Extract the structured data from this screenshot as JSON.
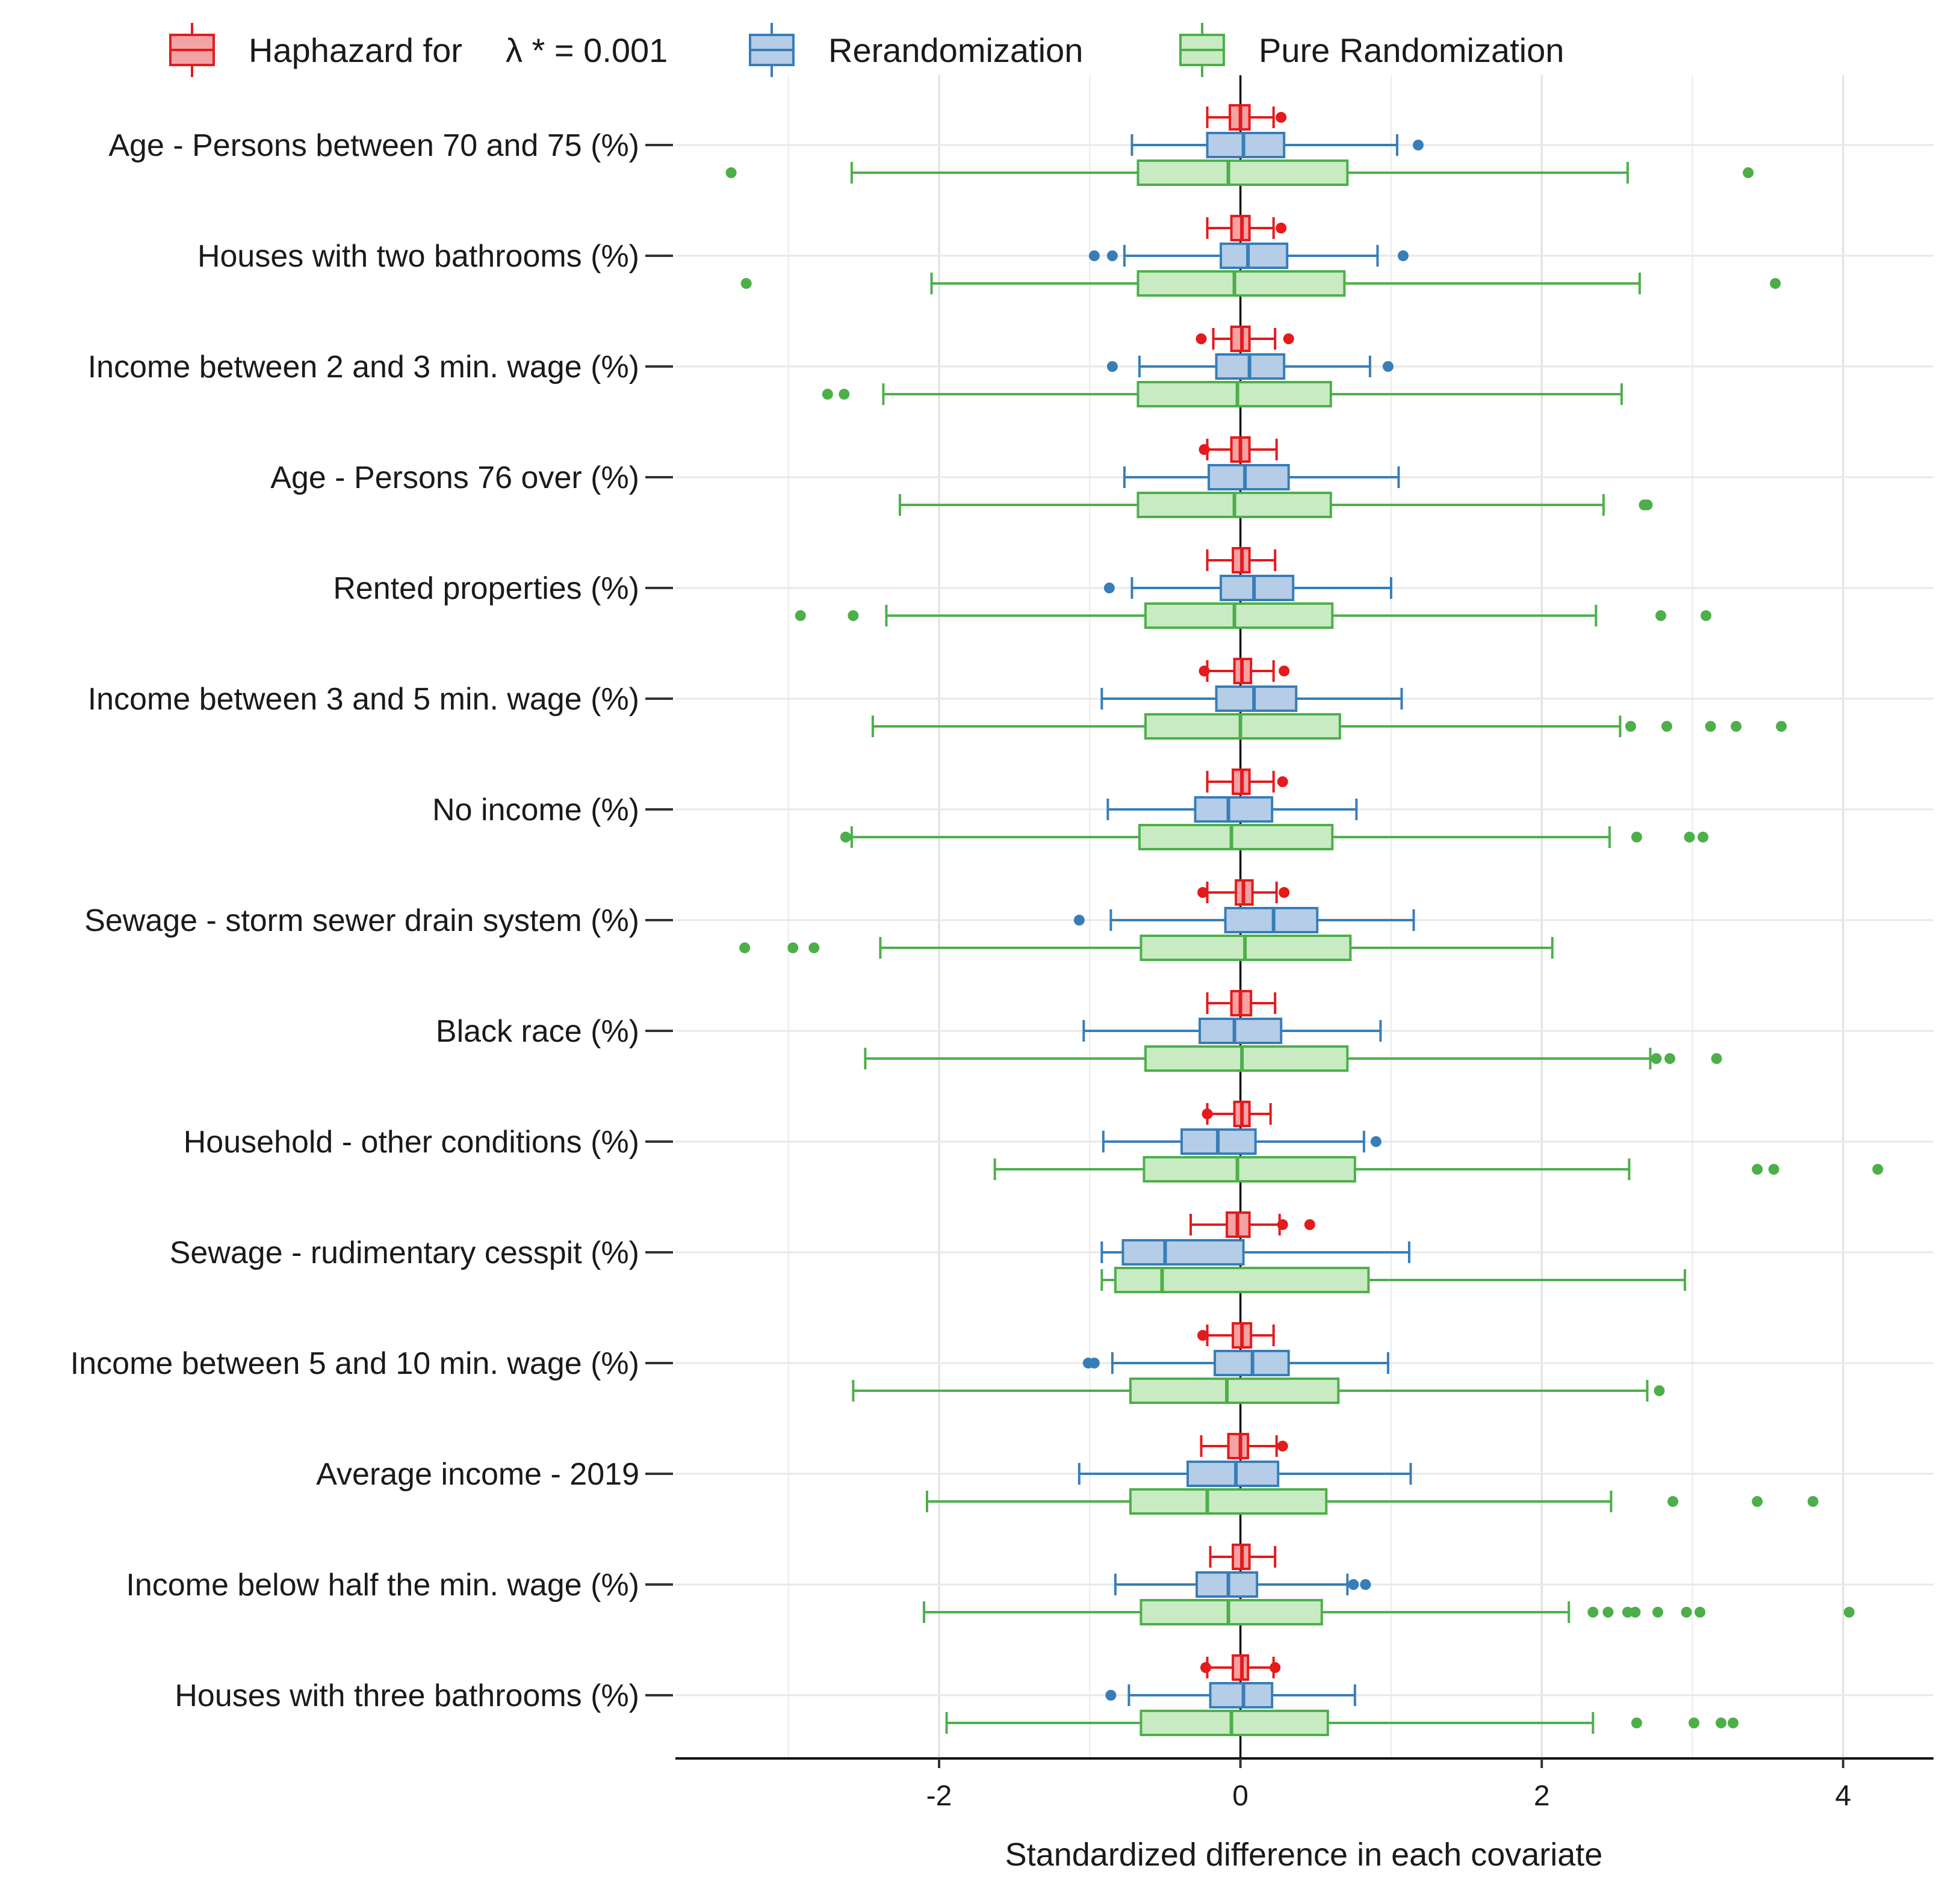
{
  "chart_data": {
    "type": "boxplot",
    "orientation": "horizontal",
    "title": "",
    "xlabel": "Standardized difference in each covariate",
    "ylabel": "",
    "xlim": [
      -3.75,
      4.6
    ],
    "xticks": [
      -2,
      0,
      2,
      4
    ],
    "xtick_labels": [
      "-2",
      "0",
      "2",
      "4"
    ],
    "grid": true,
    "legend": {
      "placement": "top",
      "entries": [
        {
          "key": "haphazard",
          "label_text": "Haphazard for",
          "label_math": "λ * = 0.001"
        },
        {
          "key": "rerandomization",
          "label_text": "Rerandomization"
        },
        {
          "key": "pure",
          "label_text": "Pure Randomization"
        }
      ]
    },
    "series": [
      {
        "key": "haphazard",
        "name": "Haphazard for λ* = 0.001",
        "color": "#e41a1c",
        "fill": "#f4a3a5"
      },
      {
        "key": "rerandomization",
        "name": "Rerandomization",
        "color": "#377eb8",
        "fill": "#b5cde6"
      },
      {
        "key": "pure",
        "name": "Pure Randomization",
        "color": "#4daf4a",
        "fill": "#c8ebc3"
      }
    ],
    "categories": [
      {
        "label": "Age - Persons between 70 and 75 (%)",
        "haphazard": {
          "whisker_low": -0.22,
          "q1": -0.07,
          "median": 0.0,
          "q3": 0.06,
          "whisker_high": 0.22,
          "outliers": [
            0.27
          ]
        },
        "rerandomization": {
          "whisker_low": -0.72,
          "q1": -0.22,
          "median": 0.02,
          "q3": 0.29,
          "whisker_high": 1.04,
          "outliers": [
            1.18
          ]
        },
        "pure": {
          "whisker_low": -2.58,
          "q1": -0.68,
          "median": -0.08,
          "q3": 0.71,
          "whisker_high": 2.57,
          "outliers": [
            -3.38,
            3.37
          ]
        }
      },
      {
        "label": "Houses with two bathrooms (%)",
        "haphazard": {
          "whisker_low": -0.22,
          "q1": -0.06,
          "median": 0.01,
          "q3": 0.06,
          "whisker_high": 0.22,
          "outliers": [
            0.27
          ]
        },
        "rerandomization": {
          "whisker_low": -0.77,
          "q1": -0.13,
          "median": 0.05,
          "q3": 0.31,
          "whisker_high": 0.91,
          "outliers": [
            -0.97,
            -0.85,
            1.08
          ]
        },
        "pure": {
          "whisker_low": -2.05,
          "q1": -0.68,
          "median": -0.04,
          "q3": 0.69,
          "whisker_high": 2.65,
          "outliers": [
            -3.28,
            3.55
          ]
        }
      },
      {
        "label": "Income between 2 and 3 min. wage (%)",
        "haphazard": {
          "whisker_low": -0.18,
          "q1": -0.06,
          "median": 0.01,
          "q3": 0.06,
          "whisker_high": 0.23,
          "outliers": [
            -0.26,
            0.32
          ]
        },
        "rerandomization": {
          "whisker_low": -0.67,
          "q1": -0.16,
          "median": 0.06,
          "q3": 0.29,
          "whisker_high": 0.86,
          "outliers": [
            -0.85,
            0.98
          ]
        },
        "pure": {
          "whisker_low": -2.37,
          "q1": -0.68,
          "median": -0.02,
          "q3": 0.6,
          "whisker_high": 2.53,
          "outliers": [
            -2.74,
            -2.63
          ]
        }
      },
      {
        "label": "Age - Persons 76 over (%)",
        "haphazard": {
          "whisker_low": -0.22,
          "q1": -0.06,
          "median": 0.0,
          "q3": 0.06,
          "whisker_high": 0.24,
          "outliers": [
            -0.24
          ]
        },
        "rerandomization": {
          "whisker_low": -0.77,
          "q1": -0.21,
          "median": 0.03,
          "q3": 0.32,
          "whisker_high": 1.05,
          "outliers": []
        },
        "pure": {
          "whisker_low": -2.26,
          "q1": -0.68,
          "median": -0.04,
          "q3": 0.6,
          "whisker_high": 2.41,
          "outliers": [
            2.68,
            2.7
          ]
        }
      },
      {
        "label": "Rented properties (%)",
        "haphazard": {
          "whisker_low": -0.22,
          "q1": -0.05,
          "median": 0.01,
          "q3": 0.06,
          "whisker_high": 0.23,
          "outliers": []
        },
        "rerandomization": {
          "whisker_low": -0.72,
          "q1": -0.13,
          "median": 0.09,
          "q3": 0.35,
          "whisker_high": 1.0,
          "outliers": [
            -0.87
          ]
        },
        "pure": {
          "whisker_low": -2.35,
          "q1": -0.63,
          "median": -0.04,
          "q3": 0.61,
          "whisker_high": 2.36,
          "outliers": [
            -2.92,
            -2.57,
            2.79,
            3.09
          ]
        }
      },
      {
        "label": "Income between 3 and 5 min. wage (%)",
        "haphazard": {
          "whisker_low": -0.22,
          "q1": -0.04,
          "median": 0.01,
          "q3": 0.07,
          "whisker_high": 0.22,
          "outliers": [
            -0.24,
            0.29
          ]
        },
        "rerandomization": {
          "whisker_low": -0.92,
          "q1": -0.16,
          "median": 0.09,
          "q3": 0.37,
          "whisker_high": 1.07,
          "outliers": []
        },
        "pure": {
          "whisker_low": -2.44,
          "q1": -0.63,
          "median": 0.0,
          "q3": 0.66,
          "whisker_high": 2.52,
          "outliers": [
            2.59,
            2.83,
            3.12,
            3.29,
            3.59
          ]
        }
      },
      {
        "label": "No income (%)",
        "haphazard": {
          "whisker_low": -0.22,
          "q1": -0.05,
          "median": 0.01,
          "q3": 0.06,
          "whisker_high": 0.22,
          "outliers": [
            0.28
          ]
        },
        "rerandomization": {
          "whisker_low": -0.88,
          "q1": -0.3,
          "median": -0.08,
          "q3": 0.21,
          "whisker_high": 0.77,
          "outliers": []
        },
        "pure": {
          "whisker_low": -2.58,
          "q1": -0.67,
          "median": -0.06,
          "q3": 0.61,
          "whisker_high": 2.45,
          "outliers": [
            -2.62,
            2.63,
            2.98,
            3.07
          ]
        }
      },
      {
        "label": "Sewage - storm sewer drain system (%)",
        "haphazard": {
          "whisker_low": -0.22,
          "q1": -0.03,
          "median": 0.02,
          "q3": 0.08,
          "whisker_high": 0.24,
          "outliers": [
            -0.25,
            0.29
          ]
        },
        "rerandomization": {
          "whisker_low": -0.86,
          "q1": -0.1,
          "median": 0.22,
          "q3": 0.51,
          "whisker_high": 1.15,
          "outliers": [
            -1.07
          ]
        },
        "pure": {
          "whisker_low": -2.39,
          "q1": -0.66,
          "median": 0.03,
          "q3": 0.73,
          "whisker_high": 2.07,
          "outliers": [
            -3.29,
            -2.97,
            -2.83
          ]
        }
      },
      {
        "label": "Black race (%)",
        "haphazard": {
          "whisker_low": -0.22,
          "q1": -0.06,
          "median": 0.0,
          "q3": 0.07,
          "whisker_high": 0.23,
          "outliers": []
        },
        "rerandomization": {
          "whisker_low": -1.04,
          "q1": -0.27,
          "median": -0.04,
          "q3": 0.27,
          "whisker_high": 0.93,
          "outliers": []
        },
        "pure": {
          "whisker_low": -2.49,
          "q1": -0.63,
          "median": 0.01,
          "q3": 0.71,
          "whisker_high": 2.72,
          "outliers": [
            2.76,
            2.85,
            3.16
          ]
        }
      },
      {
        "label": "Household - other conditions (%)",
        "haphazard": {
          "whisker_low": -0.22,
          "q1": -0.04,
          "median": 0.01,
          "q3": 0.06,
          "whisker_high": 0.2,
          "outliers": [
            -0.22
          ]
        },
        "rerandomization": {
          "whisker_low": -0.91,
          "q1": -0.39,
          "median": -0.15,
          "q3": 0.1,
          "whisker_high": 0.82,
          "outliers": [
            0.9
          ]
        },
        "pure": {
          "whisker_low": -1.63,
          "q1": -0.64,
          "median": -0.02,
          "q3": 0.76,
          "whisker_high": 2.58,
          "outliers": [
            3.43,
            3.54,
            4.23
          ]
        }
      },
      {
        "label": "Sewage - rudimentary cesspit (%)",
        "haphazard": {
          "whisker_low": -0.33,
          "q1": -0.09,
          "median": -0.02,
          "q3": 0.06,
          "whisker_high": 0.26,
          "outliers": [
            0.28,
            0.46
          ]
        },
        "rerandomization": {
          "whisker_low": -0.92,
          "q1": -0.78,
          "median": -0.5,
          "q3": 0.02,
          "whisker_high": 1.12,
          "outliers": []
        },
        "pure": {
          "whisker_low": -0.92,
          "q1": -0.83,
          "median": -0.52,
          "q3": 0.85,
          "whisker_high": 2.95,
          "outliers": []
        }
      },
      {
        "label": "Income between 5 and 10 min. wage (%)",
        "haphazard": {
          "whisker_low": -0.22,
          "q1": -0.05,
          "median": 0.01,
          "q3": 0.07,
          "whisker_high": 0.22,
          "outliers": [
            -0.25
          ]
        },
        "rerandomization": {
          "whisker_low": -0.85,
          "q1": -0.17,
          "median": 0.08,
          "q3": 0.32,
          "whisker_high": 0.98,
          "outliers": [
            -1.01,
            -0.97
          ]
        },
        "pure": {
          "whisker_low": -2.57,
          "q1": -0.73,
          "median": -0.09,
          "q3": 0.65,
          "whisker_high": 2.7,
          "outliers": [
            2.78
          ]
        }
      },
      {
        "label": "Average income - 2019",
        "haphazard": {
          "whisker_low": -0.26,
          "q1": -0.08,
          "median": 0.0,
          "q3": 0.05,
          "whisker_high": 0.24,
          "outliers": [
            0.28
          ]
        },
        "rerandomization": {
          "whisker_low": -1.07,
          "q1": -0.35,
          "median": -0.03,
          "q3": 0.25,
          "whisker_high": 1.13,
          "outliers": []
        },
        "pure": {
          "whisker_low": -2.08,
          "q1": -0.73,
          "median": -0.22,
          "q3": 0.57,
          "whisker_high": 2.46,
          "outliers": [
            2.87,
            3.43,
            3.8
          ]
        }
      },
      {
        "label": "Income below half the min. wage (%)",
        "haphazard": {
          "whisker_low": -0.2,
          "q1": -0.05,
          "median": 0.01,
          "q3": 0.06,
          "whisker_high": 0.23,
          "outliers": []
        },
        "rerandomization": {
          "whisker_low": -0.83,
          "q1": -0.29,
          "median": -0.08,
          "q3": 0.11,
          "whisker_high": 0.71,
          "outliers": [
            0.75,
            0.83
          ]
        },
        "pure": {
          "whisker_low": -2.1,
          "q1": -0.66,
          "median": -0.08,
          "q3": 0.54,
          "whisker_high": 2.18,
          "outliers": [
            2.34,
            2.44,
            2.57,
            2.62,
            2.77,
            2.96,
            3.05,
            4.04
          ]
        }
      },
      {
        "label": "Houses with three bathrooms (%)",
        "haphazard": {
          "whisker_low": -0.22,
          "q1": -0.05,
          "median": 0.01,
          "q3": 0.05,
          "whisker_high": 0.22,
          "outliers": [
            -0.23,
            0.23
          ]
        },
        "rerandomization": {
          "whisker_low": -0.74,
          "q1": -0.2,
          "median": 0.02,
          "q3": 0.21,
          "whisker_high": 0.76,
          "outliers": [
            -0.86
          ]
        },
        "pure": {
          "whisker_low": -1.95,
          "q1": -0.66,
          "median": -0.06,
          "q3": 0.58,
          "whisker_high": 2.34,
          "outliers": [
            2.63,
            3.01,
            3.19,
            3.27
          ]
        }
      }
    ]
  }
}
